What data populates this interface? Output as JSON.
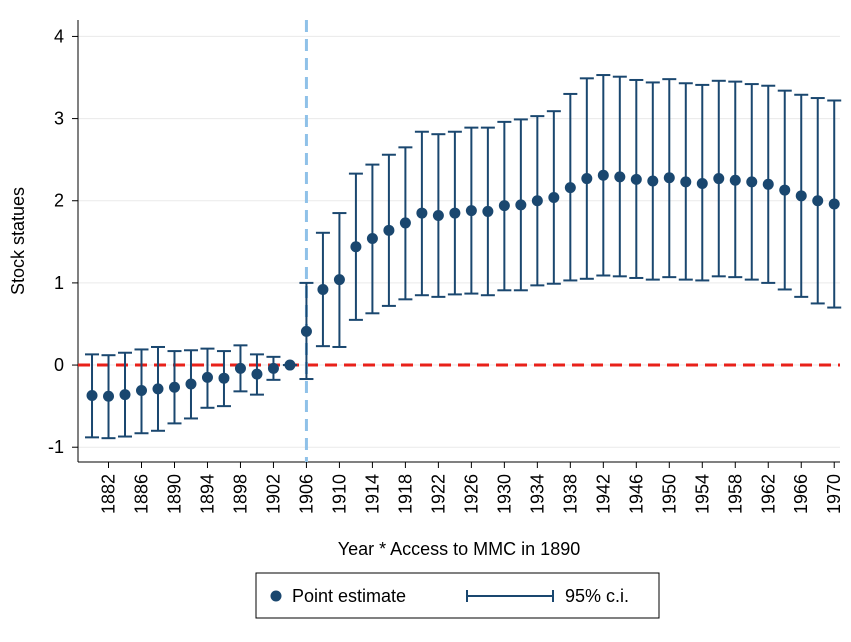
{
  "chart_data": {
    "type": "errorbar",
    "y_label": "Stock statues",
    "x_label": "Year * Access to MMC in 1890",
    "x": [
      1880,
      1882,
      1884,
      1886,
      1888,
      1890,
      1892,
      1894,
      1896,
      1898,
      1900,
      1902,
      1904,
      1906,
      1908,
      1910,
      1912,
      1914,
      1916,
      1918,
      1920,
      1922,
      1924,
      1926,
      1928,
      1930,
      1932,
      1934,
      1936,
      1938,
      1940,
      1942,
      1944,
      1946,
      1948,
      1950,
      1952,
      1954,
      1956,
      1958,
      1960,
      1962,
      1964,
      1966,
      1968,
      1970
    ],
    "series": [
      {
        "name": "Point estimate",
        "color": "#1a476f",
        "values": [
          -0.37,
          -0.38,
          -0.36,
          -0.31,
          -0.29,
          -0.27,
          -0.23,
          -0.15,
          -0.16,
          -0.04,
          -0.11,
          -0.04,
          0,
          0.41,
          0.92,
          1.04,
          1.44,
          1.54,
          1.64,
          1.73,
          1.85,
          1.82,
          1.85,
          1.88,
          1.87,
          1.94,
          1.95,
          2.0,
          2.04,
          2.16,
          2.27,
          2.31,
          2.29,
          2.26,
          2.24,
          2.28,
          2.23,
          2.21,
          2.27,
          2.25,
          2.23,
          2.2,
          2.13,
          2.06,
          2.0,
          1.96
        ]
      },
      {
        "name": "95% c.i.",
        "color": "#1a476f",
        "lower": [
          -0.88,
          -0.89,
          -0.87,
          -0.83,
          -0.8,
          -0.71,
          -0.65,
          -0.52,
          -0.5,
          -0.32,
          -0.36,
          -0.18,
          0,
          -0.17,
          0.23,
          0.22,
          0.55,
          0.63,
          0.72,
          0.8,
          0.85,
          0.83,
          0.86,
          0.87,
          0.85,
          0.91,
          0.91,
          0.97,
          0.99,
          1.03,
          1.05,
          1.09,
          1.08,
          1.06,
          1.04,
          1.07,
          1.04,
          1.03,
          1.08,
          1.07,
          1.04,
          1.0,
          0.92,
          0.83,
          0.75,
          0.7
        ],
        "upper": [
          0.13,
          0.12,
          0.15,
          0.19,
          0.22,
          0.17,
          0.18,
          0.2,
          0.17,
          0.24,
          0.13,
          0.1,
          0,
          1.0,
          1.61,
          1.85,
          2.33,
          2.44,
          2.56,
          2.65,
          2.84,
          2.81,
          2.84,
          2.89,
          2.89,
          2.96,
          2.99,
          3.03,
          3.09,
          3.3,
          3.49,
          3.53,
          3.51,
          3.47,
          3.44,
          3.48,
          3.43,
          3.41,
          3.46,
          3.45,
          3.42,
          3.4,
          3.34,
          3.29,
          3.25,
          3.22
        ]
      }
    ],
    "xlim": [
      1878.3,
      1970.7
    ],
    "xticks": [
      1882,
      1886,
      1890,
      1894,
      1898,
      1902,
      1906,
      1910,
      1914,
      1918,
      1922,
      1926,
      1930,
      1934,
      1938,
      1942,
      1946,
      1950,
      1954,
      1958,
      1962,
      1966,
      1970
    ],
    "ylim": [
      -1.18,
      4.2
    ],
    "yticks": [
      -1,
      0,
      1,
      2,
      3,
      4
    ],
    "vline": 1906,
    "vline_color": "#8fc1e8",
    "hline": 0,
    "hline_color": "#e8211a",
    "grid": true,
    "legend": "bottom"
  }
}
